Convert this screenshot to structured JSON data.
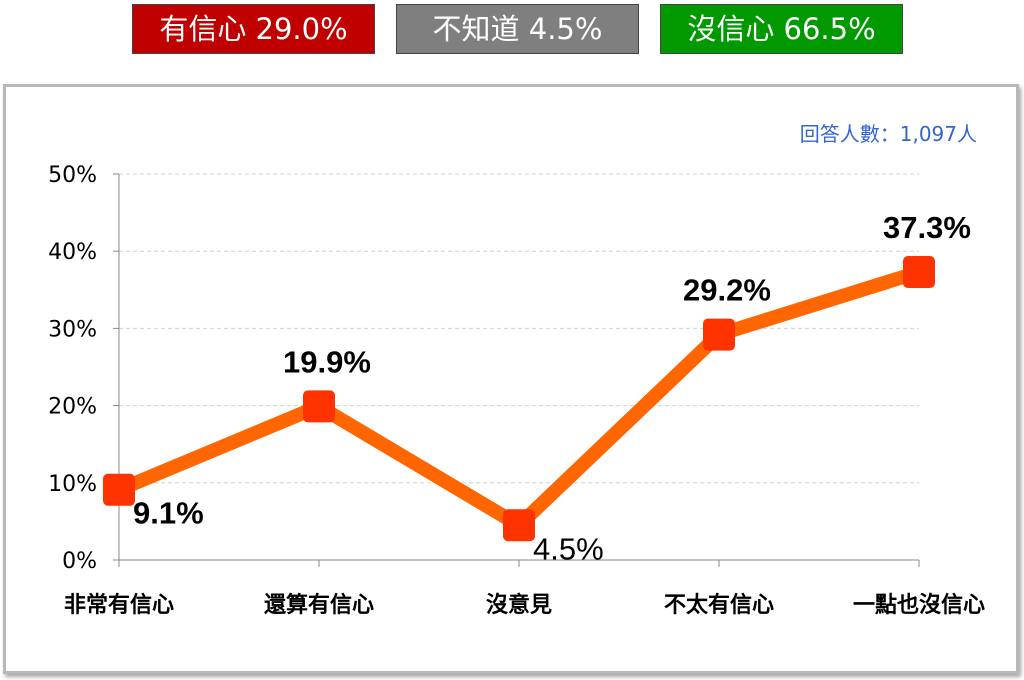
{
  "summary": {
    "confident": {
      "label": "有信心 29.0%",
      "color": "#c00000"
    },
    "unknown": {
      "label": "不知道 4.5%",
      "color": "#7f7f7f"
    },
    "not_confident": {
      "label": "沒信心 66.5%",
      "color": "#009900"
    }
  },
  "respondents": "回答人數：1,097人",
  "chart_data": {
    "type": "line",
    "title": "",
    "xlabel": "",
    "ylabel": "",
    "categories": [
      "非常有信心",
      "還算有信心",
      "沒意見",
      "不太有信心",
      "一點也沒信心"
    ],
    "values": [
      9.1,
      19.9,
      4.5,
      29.2,
      37.3
    ],
    "data_labels": [
      "9.1%",
      "19.9%",
      "4.5%",
      "29.2%",
      "37.3%"
    ],
    "ylim": [
      0,
      50
    ],
    "yticks": [
      0,
      10,
      20,
      30,
      40,
      50
    ],
    "ytick_labels": [
      "0%",
      "10%",
      "20%",
      "30%",
      "40%",
      "50%"
    ],
    "grid": true,
    "line_color": "#ff6600",
    "marker_color": "#ff3300"
  }
}
